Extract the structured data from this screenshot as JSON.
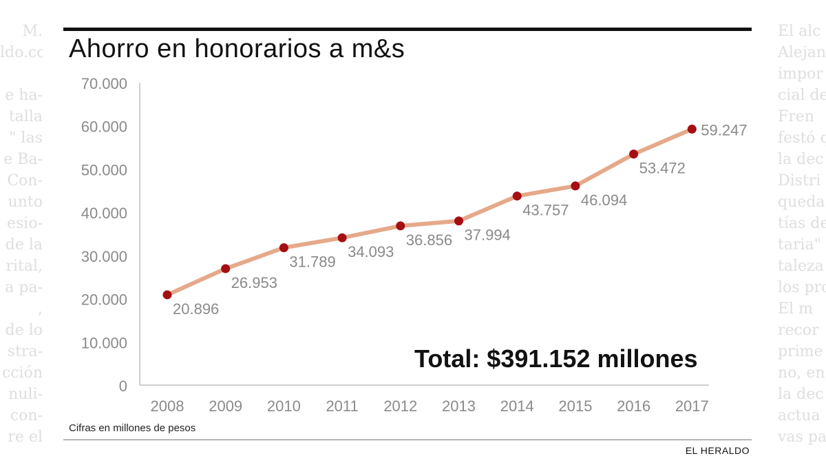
{
  "background_text": {
    "left": [
      "M.",
      "ldo.co",
      "",
      "e ha-",
      "talla",
      "\" las",
      "e Ba-",
      "Con-",
      "unto",
      "esio-",
      "de la",
      "rital,",
      "a pa-",
      ",",
      "de lo",
      "stra-",
      "cción",
      "nuli-",
      "con-",
      "re el"
    ],
    "right": [
      "El alc",
      "Alejan",
      "impor",
      "cial de",
      "Fren",
      "festó q",
      "la dec",
      "Distri",
      "queda",
      "tías de",
      "taria\"",
      "taleza",
      "los pro",
      "El m",
      "recor",
      "prime",
      "no, en",
      "la dec",
      "actua",
      "vas pa"
    ]
  },
  "chart_data": {
    "type": "line",
    "title": "Ahorro en honorarios a m&s",
    "x": [
      "2008",
      "2009",
      "2010",
      "2011",
      "2012",
      "2013",
      "2014",
      "2015",
      "2016",
      "2017"
    ],
    "values": [
      20896,
      26953,
      31789,
      34093,
      36856,
      37994,
      43757,
      46094,
      53472,
      59247
    ],
    "value_labels": [
      "20.896",
      "26.953",
      "31.789",
      "34.093",
      "36.856",
      "37.994",
      "43.757",
      "46.094",
      "53.472",
      "59.247"
    ],
    "yticks": [
      0,
      10000,
      20000,
      30000,
      40000,
      50000,
      60000,
      70000
    ],
    "ytick_labels": [
      "0",
      "10.000",
      "20.000",
      "30.000",
      "40.000",
      "50.000",
      "60.000",
      "70.000"
    ],
    "ylim": [
      0,
      70000
    ],
    "xlabel": "",
    "ylabel": "",
    "grid": false,
    "legend": "none",
    "line_color": "#e5a98a",
    "marker_color": "#a50e12",
    "annotation": "Total: $391.152 millones",
    "note": "Cifras en millones de pesos"
  },
  "footer": {
    "source": "EL HERALDO"
  }
}
